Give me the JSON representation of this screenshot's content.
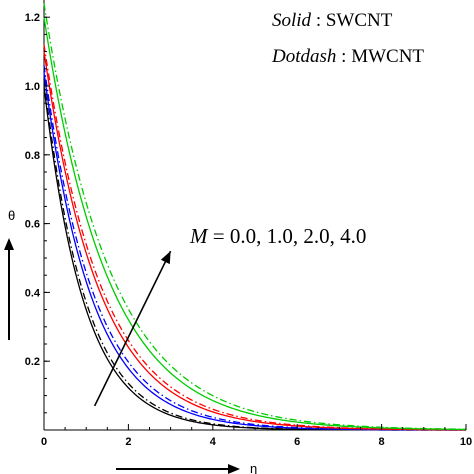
{
  "chart_data": {
    "type": "line",
    "xlabel": "η",
    "ylabel": "θ",
    "xlim": [
      0,
      10
    ],
    "ylim": [
      0,
      1.25
    ],
    "x_ticks": [
      "0",
      "2",
      "4",
      "6",
      "8",
      "10"
    ],
    "y_ticks": [
      "0.2",
      "0.4",
      "0.6",
      "0.8",
      "1.0",
      "1.2"
    ],
    "legend": [
      {
        "style": "Solid",
        "sep": " : ",
        "label": "SWCNT"
      },
      {
        "style": "Dotdash",
        "sep": " : ",
        "label": "MWCNT"
      }
    ],
    "annotation": {
      "symbol": "M",
      "text": " =  0.0, 1.0, 2.0, 4.0",
      "arrow_from": [
        1.2,
        0.07
      ],
      "arrow_to": [
        3.0,
        0.52
      ]
    },
    "series": [
      {
        "M": "0.0",
        "type": "solid",
        "color": "#000000",
        "theta0": 1.0,
        "decay": 1.05
      },
      {
        "M": "0.0",
        "type": "dotdash",
        "color": "#000000",
        "theta0": 1.02,
        "decay": 1.01
      },
      {
        "M": "1.0",
        "type": "solid",
        "color": "#0000ff",
        "theta0": 1.04,
        "decay": 0.88
      },
      {
        "M": "1.0",
        "type": "dotdash",
        "color": "#0000ff",
        "theta0": 1.06,
        "decay": 0.84
      },
      {
        "M": "2.0",
        "type": "solid",
        "color": "#ff0000",
        "theta0": 1.1,
        "decay": 0.76
      },
      {
        "M": "2.0",
        "type": "dotdash",
        "color": "#ff0000",
        "theta0": 1.12,
        "decay": 0.73
      },
      {
        "M": "4.0",
        "type": "solid",
        "color": "#00cc00",
        "theta0": 1.2,
        "decay": 0.66
      },
      {
        "M": "4.0",
        "type": "dotdash",
        "color": "#00cc00",
        "theta0": 1.24,
        "decay": 0.63
      }
    ]
  }
}
